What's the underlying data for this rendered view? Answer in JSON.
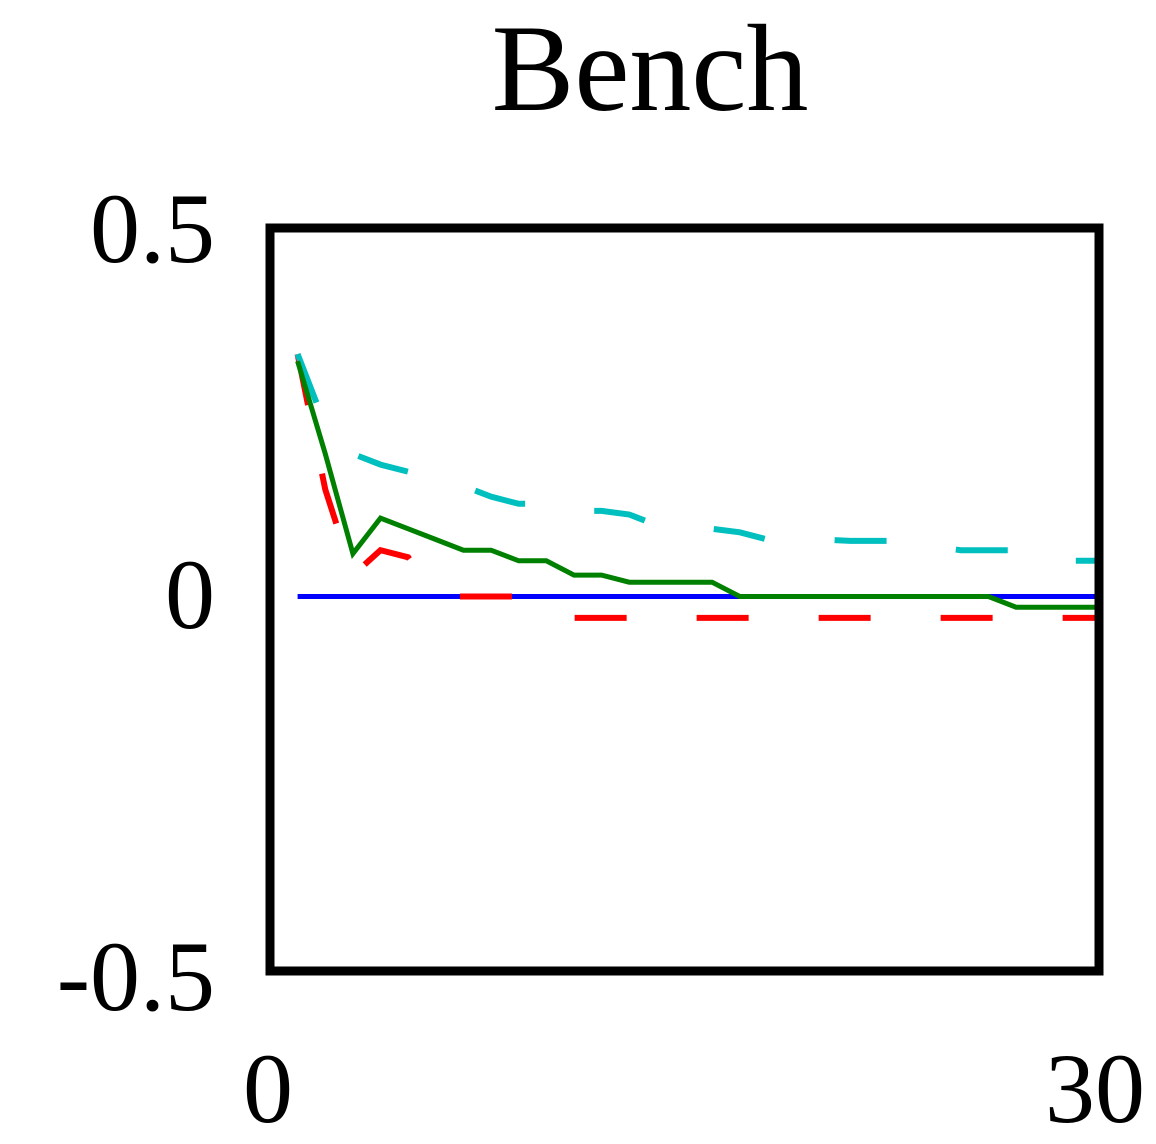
{
  "chart_data": {
    "type": "line",
    "title": "Bench",
    "xlabel": "",
    "ylabel": "",
    "xlim": [
      0,
      30
    ],
    "ylim": [
      -0.5,
      0.5
    ],
    "x_ticks": [
      "0",
      "30"
    ],
    "y_ticks": [
      "0.5",
      "0",
      "-0.5"
    ],
    "grid": false,
    "legend": "none",
    "series": [
      {
        "color": "#0000ff",
        "style": "solid",
        "x": [
          1,
          30
        ],
        "values": [
          0.0,
          0.0
        ]
      },
      {
        "color": "#ff0000",
        "style": "dashed",
        "x": [
          1,
          2,
          3,
          4,
          5,
          6,
          7,
          8,
          9,
          10,
          11,
          12,
          13,
          14,
          15,
          16,
          17,
          18,
          19,
          20,
          21,
          22,
          23,
          24,
          25,
          26,
          27,
          28,
          29,
          30
        ],
        "values": [
          0.34,
          0.15,
          0.03,
          0.065,
          0.055,
          0.0,
          0.0,
          0.0,
          0.0,
          0.0,
          -0.03,
          -0.03,
          -0.03,
          -0.03,
          -0.03,
          -0.03,
          -0.03,
          -0.03,
          -0.03,
          -0.03,
          -0.03,
          -0.03,
          -0.03,
          -0.03,
          -0.03,
          -0.03,
          -0.03,
          -0.03,
          -0.03,
          -0.03
        ]
      },
      {
        "color": "#00bfbf",
        "style": "dashed",
        "x": [
          1,
          2,
          3,
          4,
          5,
          6,
          7,
          8,
          9,
          10,
          11,
          12,
          13,
          14,
          15,
          16,
          17,
          18,
          19,
          20,
          21,
          22,
          23,
          24,
          25,
          26,
          27,
          28,
          29,
          30
        ],
        "values": [
          0.34,
          0.24,
          0.2,
          0.185,
          0.175,
          0.165,
          0.155,
          0.14,
          0.13,
          0.13,
          0.12,
          0.12,
          0.115,
          0.1,
          0.095,
          0.095,
          0.09,
          0.08,
          0.08,
          0.08,
          0.078,
          0.078,
          0.078,
          0.07,
          0.065,
          0.065,
          0.065,
          0.065,
          0.05,
          0.05
        ]
      },
      {
        "color": "#008000",
        "style": "solid",
        "x": [
          1,
          2,
          3,
          4,
          5,
          6,
          7,
          8,
          9,
          10,
          11,
          12,
          13,
          14,
          15,
          16,
          17,
          18,
          19,
          20,
          21,
          22,
          23,
          24,
          25,
          26,
          27,
          28,
          29,
          30
        ],
        "values": [
          0.33,
          0.2,
          0.06,
          0.11,
          0.095,
          0.08,
          0.065,
          0.065,
          0.05,
          0.05,
          0.03,
          0.03,
          0.02,
          0.02,
          0.02,
          0.02,
          0.0,
          0.0,
          0.0,
          0.0,
          0.0,
          0.0,
          0.0,
          0.0,
          0.0,
          0.0,
          -0.015,
          -0.015,
          -0.015,
          -0.015
        ]
      }
    ]
  }
}
